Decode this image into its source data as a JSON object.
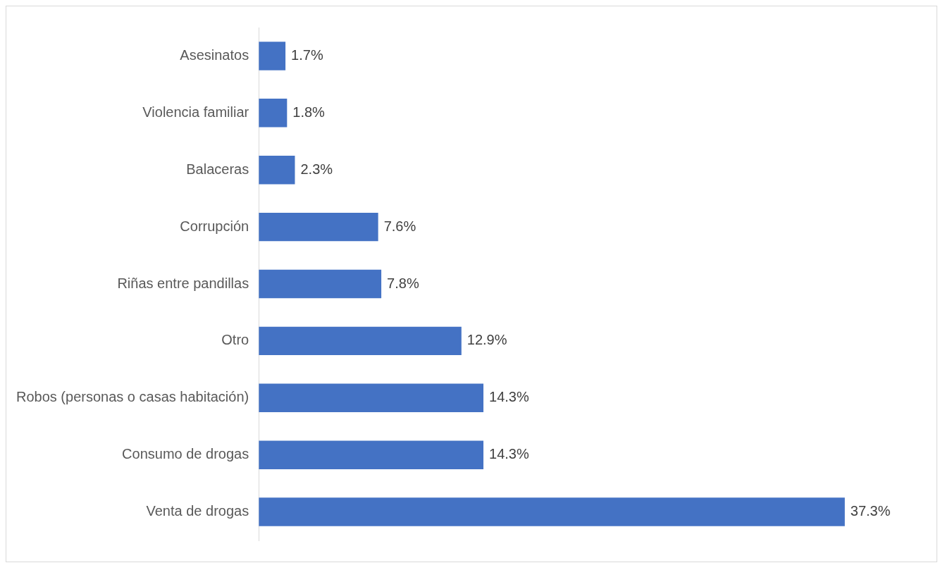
{
  "chart_data": {
    "type": "bar",
    "orientation": "horizontal",
    "categories": [
      "Asesinatos",
      "Violencia familiar",
      "Balaceras",
      "Corrupción",
      "Riñas entre pandillas",
      "Otro",
      "Robos (personas o casas habitación)",
      "Consumo de drogas",
      "Venta de drogas"
    ],
    "values": [
      1.7,
      1.8,
      2.3,
      7.6,
      7.8,
      12.9,
      14.3,
      14.3,
      37.3
    ],
    "value_labels": [
      "1.7%",
      "1.8%",
      "2.3%",
      "7.6%",
      "7.8%",
      "12.9%",
      "14.3%",
      "14.3%",
      "37.3%"
    ],
    "color": "#4472c4",
    "legend": false
  }
}
